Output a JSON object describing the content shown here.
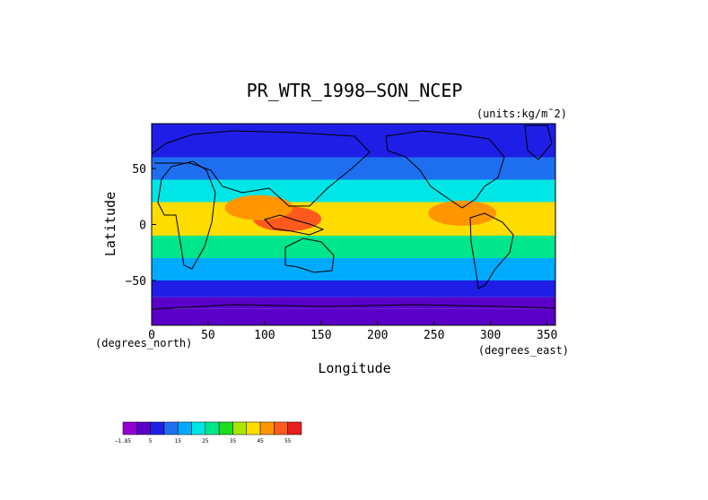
{
  "chart_data": {
    "type": "heatmap",
    "title": "PR_WTR_1998—SON_NCEP",
    "units": "(units:kg/m¯2)",
    "xlabel": "Longitude",
    "ylabel": "Latitude",
    "x_unit_label": "(degrees_east)",
    "y_unit_label": "(degrees_north)",
    "xlim": [
      0,
      357.5
    ],
    "ylim": [
      -90,
      90
    ],
    "x_ticks": [
      0,
      50,
      100,
      150,
      200,
      250,
      300,
      350
    ],
    "x_tick_labels": [
      "0",
      "50",
      "100",
      "150",
      "200",
      "250",
      "300",
      "350"
    ],
    "y_ticks": [
      50,
      0,
      -50
    ],
    "y_tick_labels": [
      "50",
      "0",
      "−50"
    ],
    "colorbar": {
      "tick_labels": [
        "−1.85",
        "5",
        "15",
        "25",
        "35",
        "45",
        "55"
      ],
      "colors": [
        "#9400d3",
        "#5a00c8",
        "#1e1ee6",
        "#1e6ef0",
        "#00aaff",
        "#00e6e6",
        "#00e68c",
        "#1edc1e",
        "#aae600",
        "#ffdc00",
        "#ff9600",
        "#ff5a1e",
        "#e61e1e"
      ]
    },
    "latitude_bands": [
      {
        "lat_range": [
          60,
          90
        ],
        "value_kg_m2": 7
      },
      {
        "lat_range": [
          40,
          60
        ],
        "value_kg_m2": 14
      },
      {
        "lat_range": [
          20,
          40
        ],
        "value_kg_m2": 25
      },
      {
        "lat_range": [
          -10,
          20
        ],
        "value_kg_m2": 45
      },
      {
        "lat_range": [
          -30,
          -10
        ],
        "value_kg_m2": 32
      },
      {
        "lat_range": [
          -50,
          -30
        ],
        "value_kg_m2": 18
      },
      {
        "lat_range": [
          -65,
          -50
        ],
        "value_kg_m2": 9
      },
      {
        "lat_range": [
          -75,
          -65
        ],
        "value_kg_m2": 4
      },
      {
        "lat_range": [
          -90,
          -75
        ],
        "value_kg_m2": 1
      }
    ],
    "maxima": [
      {
        "lon": 120,
        "lat": 5,
        "value_kg_m2": 55
      },
      {
        "lon": 275,
        "lat": 10,
        "value_kg_m2": 50
      },
      {
        "lon": 95,
        "lat": 15,
        "value_kg_m2": 50
      }
    ]
  }
}
